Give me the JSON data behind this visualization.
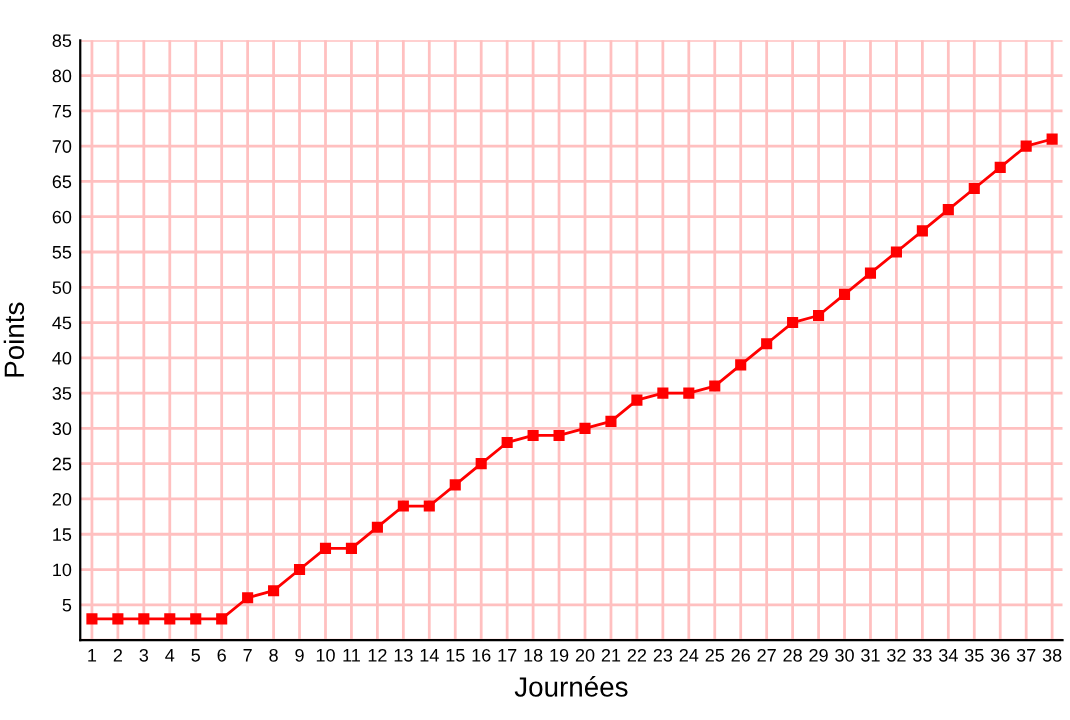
{
  "chart_data": {
    "type": "line",
    "xlabel": "Journées",
    "ylabel": "Points",
    "categories": [
      "1",
      "2",
      "3",
      "4",
      "5",
      "6",
      "7",
      "8",
      "9",
      "10",
      "11",
      "12",
      "13",
      "14",
      "15",
      "16",
      "17",
      "18",
      "19",
      "20",
      "21",
      "22",
      "23",
      "24",
      "25",
      "26",
      "27",
      "28",
      "29",
      "30",
      "31",
      "32",
      "33",
      "34",
      "35",
      "36",
      "37",
      "38"
    ],
    "series": [
      {
        "color": "#ff0000",
        "values": [
          3,
          3,
          3,
          3,
          3,
          3,
          6,
          7,
          10,
          13,
          13,
          16,
          19,
          19,
          22,
          25,
          28,
          29,
          29,
          30,
          31,
          34,
          35,
          35,
          36,
          39,
          42,
          45,
          46,
          49,
          52,
          55,
          58,
          61,
          64,
          67,
          70,
          71
        ]
      }
    ],
    "ylim": [
      0,
      85
    ],
    "yticks": [
      {
        "value": 0,
        "label": null
      },
      5,
      10,
      15,
      20,
      25,
      30,
      35,
      40,
      45,
      50,
      55,
      60,
      65,
      70,
      75,
      80,
      85
    ],
    "grid": true,
    "marker": "square",
    "line_style": "solid"
  }
}
